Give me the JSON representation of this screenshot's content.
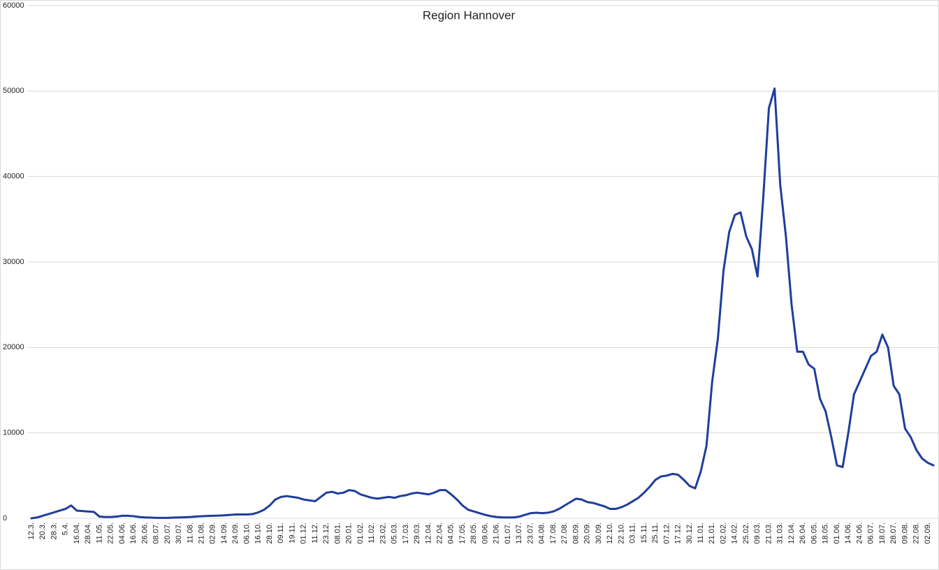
{
  "chart_data": {
    "type": "line",
    "title": "Region Hannover",
    "categories": [
      "12.3.",
      null,
      "20.3.",
      null,
      "28.3.",
      null,
      "5.4.",
      null,
      "16.04.",
      null,
      "28.04.",
      null,
      "11.05.",
      null,
      "22.05.",
      null,
      "04.06.",
      null,
      "16.06.",
      null,
      "26.06.",
      null,
      "08.07.",
      null,
      "20.07.",
      null,
      "30.07.",
      null,
      "11.08.",
      null,
      "21.08.",
      null,
      "02.09.",
      null,
      "14.09.",
      null,
      "24.09.",
      null,
      "06.10.",
      null,
      "16.10.",
      null,
      "28.10.",
      null,
      "09.11.",
      null,
      "19.11.",
      null,
      "01.12.",
      null,
      "11.12.",
      null,
      "23.12.",
      null,
      "08.01.",
      null,
      "20.01.",
      null,
      "01.02.",
      null,
      "11.02.",
      null,
      "23.02.",
      null,
      "05.03.",
      null,
      "17.03.",
      null,
      "29.03.",
      null,
      "12.04.",
      null,
      "22.04.",
      null,
      "04.05.",
      null,
      "17.05.",
      null,
      "28.05.",
      null,
      "09.06.",
      null,
      "21.06.",
      null,
      "01.07.",
      null,
      "13.07.",
      null,
      "23.07.",
      null,
      "04.08.",
      null,
      "17.08.",
      null,
      "27.08.",
      null,
      "08.09.",
      null,
      "20.09.",
      null,
      "30.09.",
      null,
      "12.10.",
      null,
      "22.10.",
      null,
      "03.11.",
      null,
      "15.11.",
      null,
      "25.11.",
      null,
      "07.12.",
      null,
      "17.12.",
      null,
      "30.12.",
      null,
      "11.01.",
      null,
      "21.01.",
      null,
      "02.02.",
      null,
      "14.02.",
      null,
      "25.02.",
      null,
      "09.03.",
      null,
      "21.03.",
      null,
      "31.03.",
      null,
      "12.04.",
      null,
      "26.04.",
      null,
      "06.05.",
      null,
      "18.05.",
      null,
      "01.06.",
      null,
      "14.06.",
      null,
      "24.06.",
      null,
      "06.07.",
      null,
      "18.07.",
      null,
      "28.07.",
      null,
      "09.08.",
      null,
      "22.08.",
      null,
      "02.09.",
      null
    ],
    "values": [
      0,
      100,
      300,
      500,
      700,
      900,
      1100,
      1500,
      900,
      850,
      800,
      750,
      200,
      150,
      150,
      200,
      300,
      300,
      250,
      150,
      100,
      80,
      50,
      50,
      50,
      80,
      100,
      120,
      150,
      200,
      250,
      280,
      300,
      320,
      350,
      400,
      450,
      450,
      450,
      500,
      700,
      1000,
      1500,
      2200,
      2500,
      2600,
      2500,
      2400,
      2200,
      2100,
      2000,
      2500,
      3000,
      3100,
      2900,
      3000,
      3300,
      3200,
      2800,
      2600,
      2400,
      2300,
      2400,
      2500,
      2400,
      2600,
      2700,
      2900,
      3000,
      2900,
      2800,
      3000,
      3300,
      3300,
      2800,
      2200,
      1500,
      1000,
      800,
      600,
      400,
      250,
      150,
      100,
      100,
      100,
      200,
      400,
      600,
      650,
      600,
      650,
      800,
      1100,
      1500,
      1900,
      2300,
      2200,
      1900,
      1800,
      1600,
      1400,
      1100,
      1100,
      1300,
      1600,
      2000,
      2400,
      3000,
      3700,
      4500,
      4900,
      5000,
      5200,
      5100,
      4500,
      3800,
      3500,
      5500,
      8500,
      16000,
      21000,
      29000,
      33500,
      35500,
      35800,
      33000,
      31500,
      28300,
      37500,
      48000,
      50300,
      39000,
      33000,
      25000,
      19500,
      19500,
      18000,
      17500,
      14000,
      12500,
      9500,
      6200,
      6000,
      10000,
      14500,
      16000,
      17500,
      19000,
      19500,
      21500,
      20000,
      15500,
      14500,
      10500,
      9500,
      8000,
      7000,
      6500,
      6200
    ],
    "color": "#1f3d9b",
    "ylim": [
      0,
      60000
    ],
    "yticks": [
      0,
      10000,
      20000,
      30000,
      40000,
      50000,
      60000
    ],
    "grid": true
  }
}
